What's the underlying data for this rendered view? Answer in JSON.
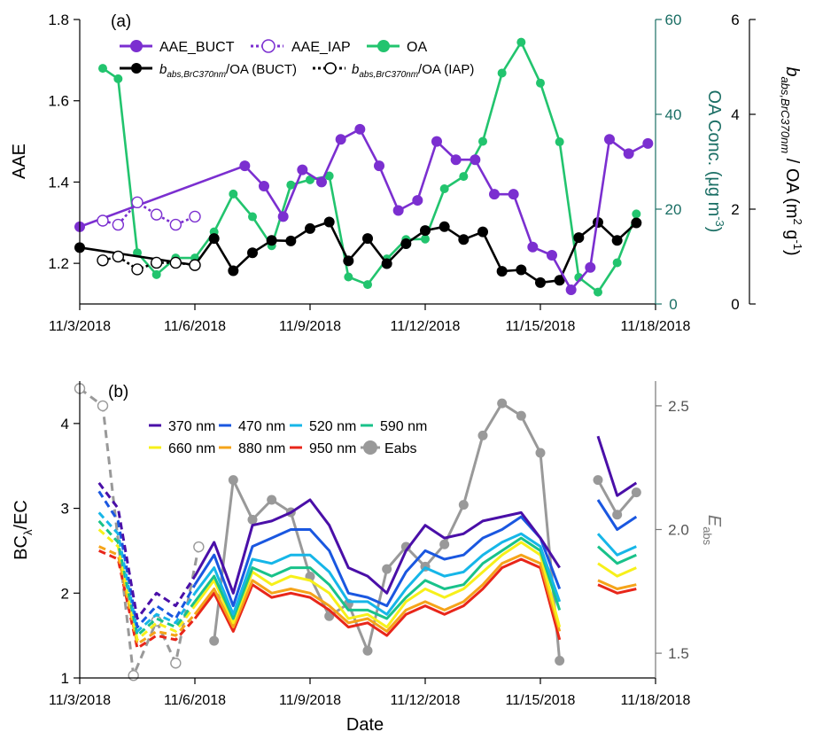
{
  "chart_data": [
    {
      "type": "line",
      "panel_label": "(a)",
      "x_ticks": [
        "11/3/2018",
        "11/6/2018",
        "11/9/2018",
        "11/12/2018",
        "11/15/2018",
        "11/18/2018"
      ],
      "y_left": {
        "label": "AAE",
        "range": [
          1.1,
          1.8
        ],
        "ticks": [
          "1.2",
          "1.4",
          "1.6",
          "1.8"
        ]
      },
      "y_right1": {
        "label_main": "OA Conc. (μg m",
        "label_sup": "-3",
        "label_end": ")",
        "range": [
          0,
          60
        ],
        "ticks": [
          "0",
          "20",
          "40",
          "60"
        ],
        "color": "#1a6e64"
      },
      "y_right2": {
        "label_pre": "b",
        "label_sub": "abs,BrC370nm",
        "label_post": " / OA (m",
        "label_sup1": "2",
        "label_mid": " g",
        "label_sup2": "-1",
        "label_end": ")",
        "range": [
          0,
          6
        ],
        "ticks": [
          "0",
          "2",
          "4",
          "6"
        ]
      },
      "legend": {
        "aae_buct": "AAE_BUCT",
        "aae_iap": "AAE_IAP",
        "oa": "OA",
        "b_buct_pre": "b",
        "b_buct_sub": "abs,BrC370nm",
        "b_buct_post": "/OA (BUCT)",
        "b_iap_pre": "b",
        "b_iap_sub": "abs,BrC370nm",
        "b_iap_post": "/OA (IAP)"
      },
      "series": [
        {
          "name": "AAE_BUCT",
          "axis": "left",
          "color": "#7b2fd0",
          "style": "solid",
          "marker": "filled",
          "x": [
            3.0,
            7.3,
            7.8,
            8.3,
            8.8,
            9.3,
            9.8,
            10.3,
            10.8,
            11.3,
            11.8,
            12.3,
            12.8,
            13.3,
            13.8,
            14.3,
            14.8,
            15.3,
            15.8,
            16.3,
            16.8,
            17.3,
            17.8
          ],
          "y": [
            1.29,
            1.44,
            1.39,
            1.315,
            1.43,
            1.4,
            1.505,
            1.53,
            1.44,
            1.33,
            1.355,
            1.5,
            1.455,
            1.455,
            1.37,
            1.37,
            1.24,
            1.22,
            1.135,
            1.19,
            1.505,
            1.47,
            1.495
          ]
        },
        {
          "name": "AAE_IAP",
          "axis": "left",
          "color": "#7b2fd0",
          "style": "dotted",
          "marker": "open",
          "x": [
            3.6,
            4.0,
            4.5,
            5.0,
            5.5,
            6.0
          ],
          "y": [
            1.305,
            1.295,
            1.35,
            1.32,
            1.295,
            1.315
          ]
        },
        {
          "name": "OA",
          "axis": "right1",
          "color": "#22c46e",
          "style": "solid",
          "marker": "filled",
          "x": [
            3.6,
            4.0,
            4.5,
            5.0,
            5.5,
            6.0,
            6.5,
            7.0,
            7.5,
            8.0,
            8.5,
            9.0,
            9.5,
            10.0,
            10.5,
            11.0,
            11.5,
            12.0,
            12.5,
            13.0,
            13.5,
            14.0,
            14.5,
            15.0,
            15.5,
            16.0,
            16.5,
            17.0,
            17.5
          ],
          "y": [
            49.7,
            47.5,
            10.8,
            6.2,
            9.7,
            9.7,
            15.2,
            23.2,
            18.4,
            12.3,
            25.1,
            26.2,
            27.0,
            5.7,
            4.1,
            9.5,
            13.6,
            13.7,
            24.3,
            26.9,
            34.3,
            48.7,
            55.2,
            46.6,
            34.2,
            5.6,
            2.5,
            8.7,
            19.0
          ]
        },
        {
          "name": "",
          "axis": "right2",
          "color": "#000000",
          "style": "solid",
          "marker": "filled",
          "x": [
            3.0,
            6.0,
            6.5,
            7.0,
            7.5,
            8.0,
            8.5,
            9.0,
            9.5,
            10.0,
            10.5,
            11.0,
            11.5,
            12.0,
            12.5,
            13.0,
            13.5,
            14.0,
            14.5,
            15.0,
            15.5,
            16.0,
            16.5,
            17.0,
            17.5
          ],
          "y": [
            1.19,
            0.82,
            1.38,
            0.7,
            1.08,
            1.34,
            1.33,
            1.59,
            1.73,
            0.91,
            1.38,
            0.85,
            1.27,
            1.55,
            1.63,
            1.36,
            1.52,
            0.69,
            0.72,
            0.45,
            0.5,
            1.4,
            1.72,
            1.34,
            1.71
          ]
        },
        {
          "name": "",
          "axis": "right2",
          "color": "#000000",
          "style": "dotted",
          "marker": "open",
          "x": [
            3.6,
            4.0,
            4.5,
            5.0,
            5.5,
            6.0
          ],
          "y": [
            0.92,
            1.0,
            0.73,
            0.87,
            0.87,
            0.82
          ]
        }
      ]
    },
    {
      "type": "line",
      "panel_label": "(b)",
      "x_ticks": [
        "11/3/2018",
        "11/6/2018",
        "11/9/2018",
        "11/12/2018",
        "11/15/2018",
        "11/18/2018"
      ],
      "x_label": "Date",
      "y_left": {
        "label_pre": "BC",
        "label_sub": "λ",
        "label_post": "/EC",
        "range": [
          1,
          4.5
        ],
        "ticks": [
          "1",
          "2",
          "3",
          "4"
        ]
      },
      "y_right": {
        "label_pre": "E",
        "label_sub": "abs",
        "range": [
          1.4,
          2.6
        ],
        "ticks": [
          "1.5",
          "2.0",
          "2.5"
        ],
        "color": "#777777"
      },
      "legend": [
        "370 nm",
        "470 nm",
        "520 nm",
        "590 nm",
        "660 nm",
        "880 nm",
        "950 nm",
        "Eabs"
      ],
      "x": [
        3.5,
        4.0,
        4.5,
        5.0,
        5.5,
        6.0,
        6.5,
        7.0,
        7.5,
        8.0,
        8.5,
        9.0,
        9.5,
        10.0,
        10.5,
        11.0,
        11.5,
        12.0,
        12.5,
        13.0,
        13.5,
        14.0,
        14.5,
        15.0,
        15.5,
        16.0,
        16.5,
        17.0,
        17.5
      ],
      "bc_series": [
        {
          "name": "370 nm",
          "color": "#4a0fa8",
          "values": [
            3.3,
            3.0,
            1.7,
            2.0,
            1.85,
            2.2,
            2.6,
            2.0,
            2.8,
            2.85,
            2.95,
            3.1,
            2.8,
            2.3,
            2.2,
            2.0,
            2.5,
            2.8,
            2.65,
            2.7,
            2.85,
            2.9,
            2.95,
            2.65,
            2.3,
            null,
            3.85,
            3.15,
            3.3
          ]
        },
        {
          "name": "470 nm",
          "color": "#1a57e0",
          "values": [
            3.2,
            2.85,
            1.6,
            1.85,
            1.7,
            2.1,
            2.45,
            1.85,
            2.55,
            2.65,
            2.75,
            2.75,
            2.5,
            2.0,
            1.95,
            1.85,
            2.25,
            2.5,
            2.4,
            2.45,
            2.65,
            2.75,
            2.9,
            2.65,
            2.05,
            null,
            3.1,
            2.75,
            2.9
          ]
        },
        {
          "name": "520 nm",
          "color": "#16b6e8",
          "values": [
            2.95,
            2.7,
            1.55,
            1.75,
            1.65,
            2.0,
            2.3,
            1.75,
            2.4,
            2.35,
            2.45,
            2.45,
            2.25,
            1.9,
            1.9,
            1.75,
            2.05,
            2.3,
            2.2,
            2.25,
            2.45,
            2.6,
            2.7,
            2.55,
            1.9,
            null,
            2.7,
            2.45,
            2.55
          ]
        },
        {
          "name": "590 nm",
          "color": "#19c28a",
          "values": [
            2.85,
            2.6,
            1.5,
            1.7,
            1.6,
            1.9,
            2.2,
            1.7,
            2.3,
            2.2,
            2.3,
            2.3,
            2.1,
            1.8,
            1.8,
            1.7,
            1.95,
            2.15,
            2.05,
            2.1,
            2.35,
            2.5,
            2.65,
            2.5,
            1.8,
            null,
            2.55,
            2.35,
            2.45
          ]
        },
        {
          "name": "660 nm",
          "color": "#f7f01a",
          "values": [
            2.75,
            2.55,
            1.45,
            1.65,
            1.55,
            1.85,
            2.15,
            1.65,
            2.25,
            2.1,
            2.2,
            2.15,
            2.0,
            1.7,
            1.75,
            1.6,
            1.9,
            2.05,
            1.95,
            2.05,
            2.25,
            2.45,
            2.6,
            2.45,
            1.6,
            null,
            2.35,
            2.2,
            2.3
          ]
        },
        {
          "name": "880 nm",
          "color": "#f5a41a",
          "values": [
            2.55,
            2.45,
            1.4,
            1.55,
            1.5,
            1.75,
            2.05,
            1.6,
            2.15,
            2.0,
            2.05,
            2.0,
            1.85,
            1.65,
            1.7,
            1.55,
            1.8,
            1.9,
            1.8,
            1.9,
            2.1,
            2.35,
            2.45,
            2.35,
            1.55,
            null,
            2.15,
            2.05,
            2.1
          ]
        },
        {
          "name": "950 nm",
          "color": "#e8261a",
          "values": [
            2.5,
            2.4,
            1.35,
            1.5,
            1.45,
            1.7,
            2.0,
            1.55,
            2.1,
            1.95,
            2.0,
            1.95,
            1.8,
            1.6,
            1.65,
            1.5,
            1.75,
            1.85,
            1.75,
            1.85,
            2.05,
            2.3,
            2.4,
            2.3,
            1.45,
            null,
            2.1,
            2.0,
            2.05
          ]
        }
      ],
      "eabs": {
        "name": "Eabs",
        "color": "#999999",
        "dashed": {
          "x": [
            3.0,
            3.6,
            4.4,
            5.0,
            5.5,
            6.1
          ],
          "y": [
            2.57,
            2.5,
            1.41,
            1.63,
            1.46,
            1.93
          ]
        },
        "solid": {
          "x": [
            6.5,
            7.0,
            7.5,
            8.0,
            8.5,
            9.0,
            9.5,
            10.0,
            10.5,
            11.0,
            11.5,
            12.0,
            12.5,
            13.0,
            13.5,
            14.0,
            14.5,
            15.0,
            15.5
          ],
          "y": [
            1.55,
            2.2,
            2.04,
            2.12,
            2.07,
            1.81,
            1.65,
            1.7,
            1.51,
            1.84,
            1.93,
            1.85,
            1.94,
            2.1,
            2.38,
            2.51,
            2.46,
            2.31,
            1.47
          ]
        },
        "tail": {
          "x": [
            16.5,
            17.0,
            17.5
          ],
          "y": [
            2.2,
            2.06,
            2.15
          ]
        }
      }
    }
  ]
}
